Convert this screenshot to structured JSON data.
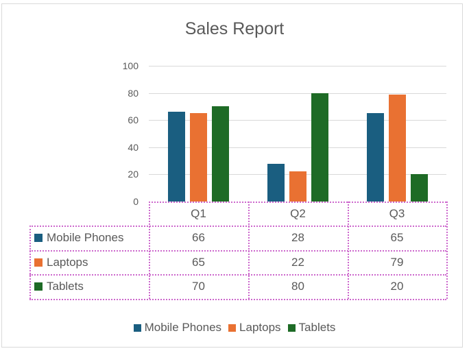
{
  "chart_data": {
    "type": "bar",
    "title": "Sales Report",
    "categories": [
      "Q1",
      "Q2",
      "Q3"
    ],
    "series": [
      {
        "name": "Mobile Phones",
        "color": "#1a5e80",
        "values": [
          66,
          28,
          65
        ]
      },
      {
        "name": "Laptops",
        "color": "#e97132",
        "values": [
          65,
          22,
          79
        ]
      },
      {
        "name": "Tablets",
        "color": "#1e6b26",
        "values": [
          70,
          80,
          20
        ]
      }
    ],
    "xlabel": "",
    "ylabel": "",
    "ylim": [
      0,
      100
    ],
    "yticks": [
      "100",
      "80",
      "60",
      "40",
      "20",
      "0"
    ],
    "grid": true,
    "data_table": true,
    "legend_position": "bottom"
  },
  "colors": {
    "table_border": "#cc66cc",
    "gridline": "#d9d9d9",
    "text": "#595959"
  }
}
